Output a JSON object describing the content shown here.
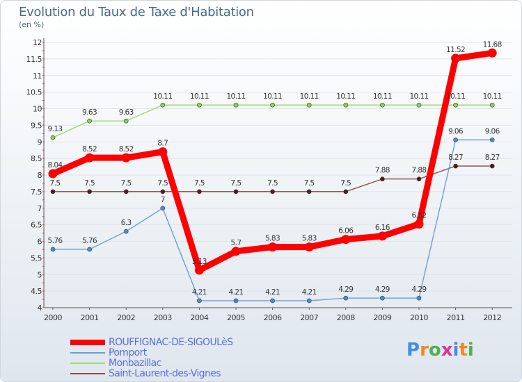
{
  "chart_data": {
    "type": "line",
    "title": "Evolution du Taux de Taxe d'Habitation",
    "subtitle": "(en %)",
    "xlabel": "",
    "ylabel": "(en %)",
    "ylim": [
      4,
      12
    ],
    "yticks": [
      4,
      4.5,
      5,
      5.5,
      6,
      6.5,
      7,
      7.5,
      8,
      8.5,
      9,
      9.5,
      10,
      10.5,
      11,
      11.5,
      12
    ],
    "ytick_labels": [
      "4",
      "4.5",
      "5",
      "5.5",
      "6",
      "6.5",
      "7",
      "7.5",
      "8",
      "8.5",
      "9",
      "9.5",
      "10",
      "10.5",
      "11",
      "11.5",
      "12"
    ],
    "grid": "horizontal",
    "x": [
      "2000",
      "2001",
      "2002",
      "2003",
      "2004",
      "2005",
      "2006",
      "2007",
      "2008",
      "2009",
      "2010",
      "2011",
      "2012"
    ],
    "series": [
      {
        "name": "ROUFFIGNAC-DE-SIGOULèS",
        "color": "#ff0000",
        "marker_color": "#ff0000",
        "width": "thick",
        "values": [
          8.04,
          8.52,
          8.52,
          8.7,
          5.13,
          5.7,
          5.83,
          5.83,
          6.06,
          6.16,
          6.52,
          11.52,
          11.68
        ],
        "labels": [
          "8.04",
          "8.52",
          "8.52",
          "8.7",
          "5.13",
          "5.7",
          "5.83",
          "5.83",
          "6.06",
          "6.16",
          "6.52",
          "11.52",
          "11.68"
        ]
      },
      {
        "name": "Pomport",
        "color": "#6b9fd1",
        "marker_color": "#4f8fcf",
        "width": "thin",
        "values": [
          5.76,
          5.76,
          6.3,
          7.0,
          4.21,
          4.21,
          4.21,
          4.21,
          4.29,
          4.29,
          4.29,
          9.06,
          9.06
        ],
        "labels": [
          "5.76",
          "5.76",
          "6.3",
          "7",
          "4.21",
          "4.21",
          "4.21",
          "4.21",
          "4.29",
          "4.29",
          "4.29",
          "9.06",
          "9.06"
        ]
      },
      {
        "name": "Monbazillac",
        "color": "#9fd86b",
        "marker_color": "#8fd34f",
        "width": "thin",
        "values": [
          9.13,
          9.63,
          9.63,
          10.11,
          10.11,
          10.11,
          10.11,
          10.11,
          10.11,
          10.11,
          10.11,
          10.11,
          10.11
        ],
        "labels": [
          "9.13",
          "9.63",
          "9.63",
          "10.11",
          "10.11",
          "10.11",
          "10.11",
          "10.11",
          "10.11",
          "10.11",
          "10.11",
          "10.11",
          "10.11"
        ]
      },
      {
        "name": "Saint-Laurent-des-Vignes",
        "color": "#8a4a4a",
        "marker_color": "#5a1a1a",
        "width": "thin",
        "values": [
          7.5,
          7.5,
          7.5,
          7.5,
          7.5,
          7.5,
          7.5,
          7.5,
          7.5,
          7.88,
          7.88,
          8.27,
          8.27
        ],
        "labels": [
          "7.5",
          "7.5",
          "7.5",
          "7.5",
          "7.5",
          "7.5",
          "7.5",
          "7.5",
          "7.5",
          "7.88",
          "7.88",
          "8.27",
          "8.27"
        ]
      }
    ],
    "legend_position": "bottom-left"
  },
  "logo": {
    "text": "Proxiti",
    "colors": [
      "#3f8fe0",
      "#f08a1a",
      "#4fb04f",
      "#e0309a",
      "#3f8fe0",
      "#f08a1a",
      "#4fb04f"
    ]
  }
}
